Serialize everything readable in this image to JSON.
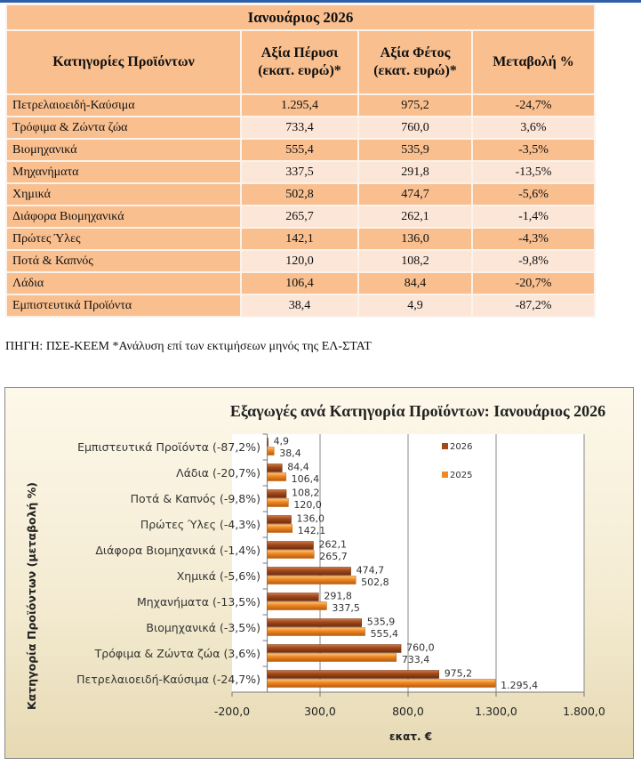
{
  "table": {
    "title": "Ιανουάριος 2026",
    "headers": [
      "Κατηγορίες Προϊόντων",
      "Αξία Πέρυσι (εκατ. ευρώ)*",
      "Αξία Φέτος (εκατ. ευρώ)*",
      "Μεταβολή %"
    ],
    "rows": [
      {
        "category": "Πετρελαιοειδή-Καύσιμα",
        "last": "1.295,4",
        "this": "975,2",
        "change": "-24,7%"
      },
      {
        "category": "Τρόφιμα & Ζώντα ζώα",
        "last": "733,4",
        "this": "760,0",
        "change": "3,6%"
      },
      {
        "category": "Βιομηχανικά",
        "last": "555,4",
        "this": "535,9",
        "change": "-3,5%"
      },
      {
        "category": "Μηχανήματα",
        "last": "337,5",
        "this": "291,8",
        "change": "-13,5%"
      },
      {
        "category": "Χημικά",
        "last": "502,8",
        "this": "474,7",
        "change": "-5,6%"
      },
      {
        "category": "Διάφορα Βιομηχανικά",
        "last": "265,7",
        "this": "262,1",
        "change": "-1,4%"
      },
      {
        "category": "Πρώτες Ύλες",
        "last": "142,1",
        "this": "136,0",
        "change": "-4,3%"
      },
      {
        "category": "Ποτά & Καπνός",
        "last": "120,0",
        "this": "108,2",
        "change": "-9,8%"
      },
      {
        "category": "Λάδια",
        "last": "106,4",
        "this": "84,4",
        "change": "-20,7%"
      },
      {
        "category": "Εμπιστευτικά Προϊόντα",
        "last": "38,4",
        "this": "4,9",
        "change": "-87,2%"
      }
    ]
  },
  "source": "ΠΗΓΗ: ΠΣΕ-ΚΕΕΜ *Ανάλυση επί των εκτιμήσεων μηνός της ΕΛ-ΣΤΑΤ",
  "chart_data": {
    "type": "bar",
    "orientation": "horizontal",
    "title": "Εξαγωγές ανά Κατηγορία Προϊόντων:  Ιανουάριος 2026",
    "xlabel": "εκατ. €",
    "ylabel": "Κατηγορία Προϊόντων (μεταβολή %)",
    "categories": [
      "Εμπιστευτικά Προϊόντα (-87,2%)",
      "Λάδια (-20,7%)",
      "Ποτά & Καπνός (-9,8%)",
      "Πρώτες Ύλες (-4,3%)",
      "Διάφορα Βιομηχανικά (-1,4%)",
      "Χημικά (-5,6%)",
      "Μηχανήματα (-13,5%)",
      "Βιομηχανικά (-3,5%)",
      "Τρόφιμα & Ζώντα ζώα (3,6%)",
      "Πετρελαιοειδή-Καύσιμα (-24,7%)"
    ],
    "series": [
      {
        "name": "2026",
        "color": "#a24a1c",
        "values": [
          4.9,
          84.4,
          108.2,
          136.0,
          262.1,
          474.7,
          291.8,
          535.9,
          760.0,
          975.2
        ],
        "labels": [
          "4,9",
          "84,4",
          "108,2",
          "136,0",
          "262,1",
          "474,7",
          "291,8",
          "535,9",
          "760,0",
          "975,2"
        ]
      },
      {
        "name": "2025",
        "color": "#f08a24",
        "values": [
          38.4,
          106.4,
          120.0,
          142.1,
          265.7,
          502.8,
          337.5,
          555.4,
          733.4,
          1295.4
        ],
        "labels": [
          "38,4",
          "106,4",
          "120,0",
          "142,1",
          "265,7",
          "502,8",
          "337,5",
          "555,4",
          "733,4",
          "1.295,4"
        ]
      }
    ],
    "xlim": [
      -200,
      1800
    ],
    "xticks": [
      -200,
      300,
      800,
      1300,
      1800
    ],
    "xtick_labels": [
      "-200,0",
      "300,0",
      "800,0",
      "1.300,0",
      "1.800,0"
    ],
    "grid": "vertical",
    "legend": "top-right inside plot"
  }
}
